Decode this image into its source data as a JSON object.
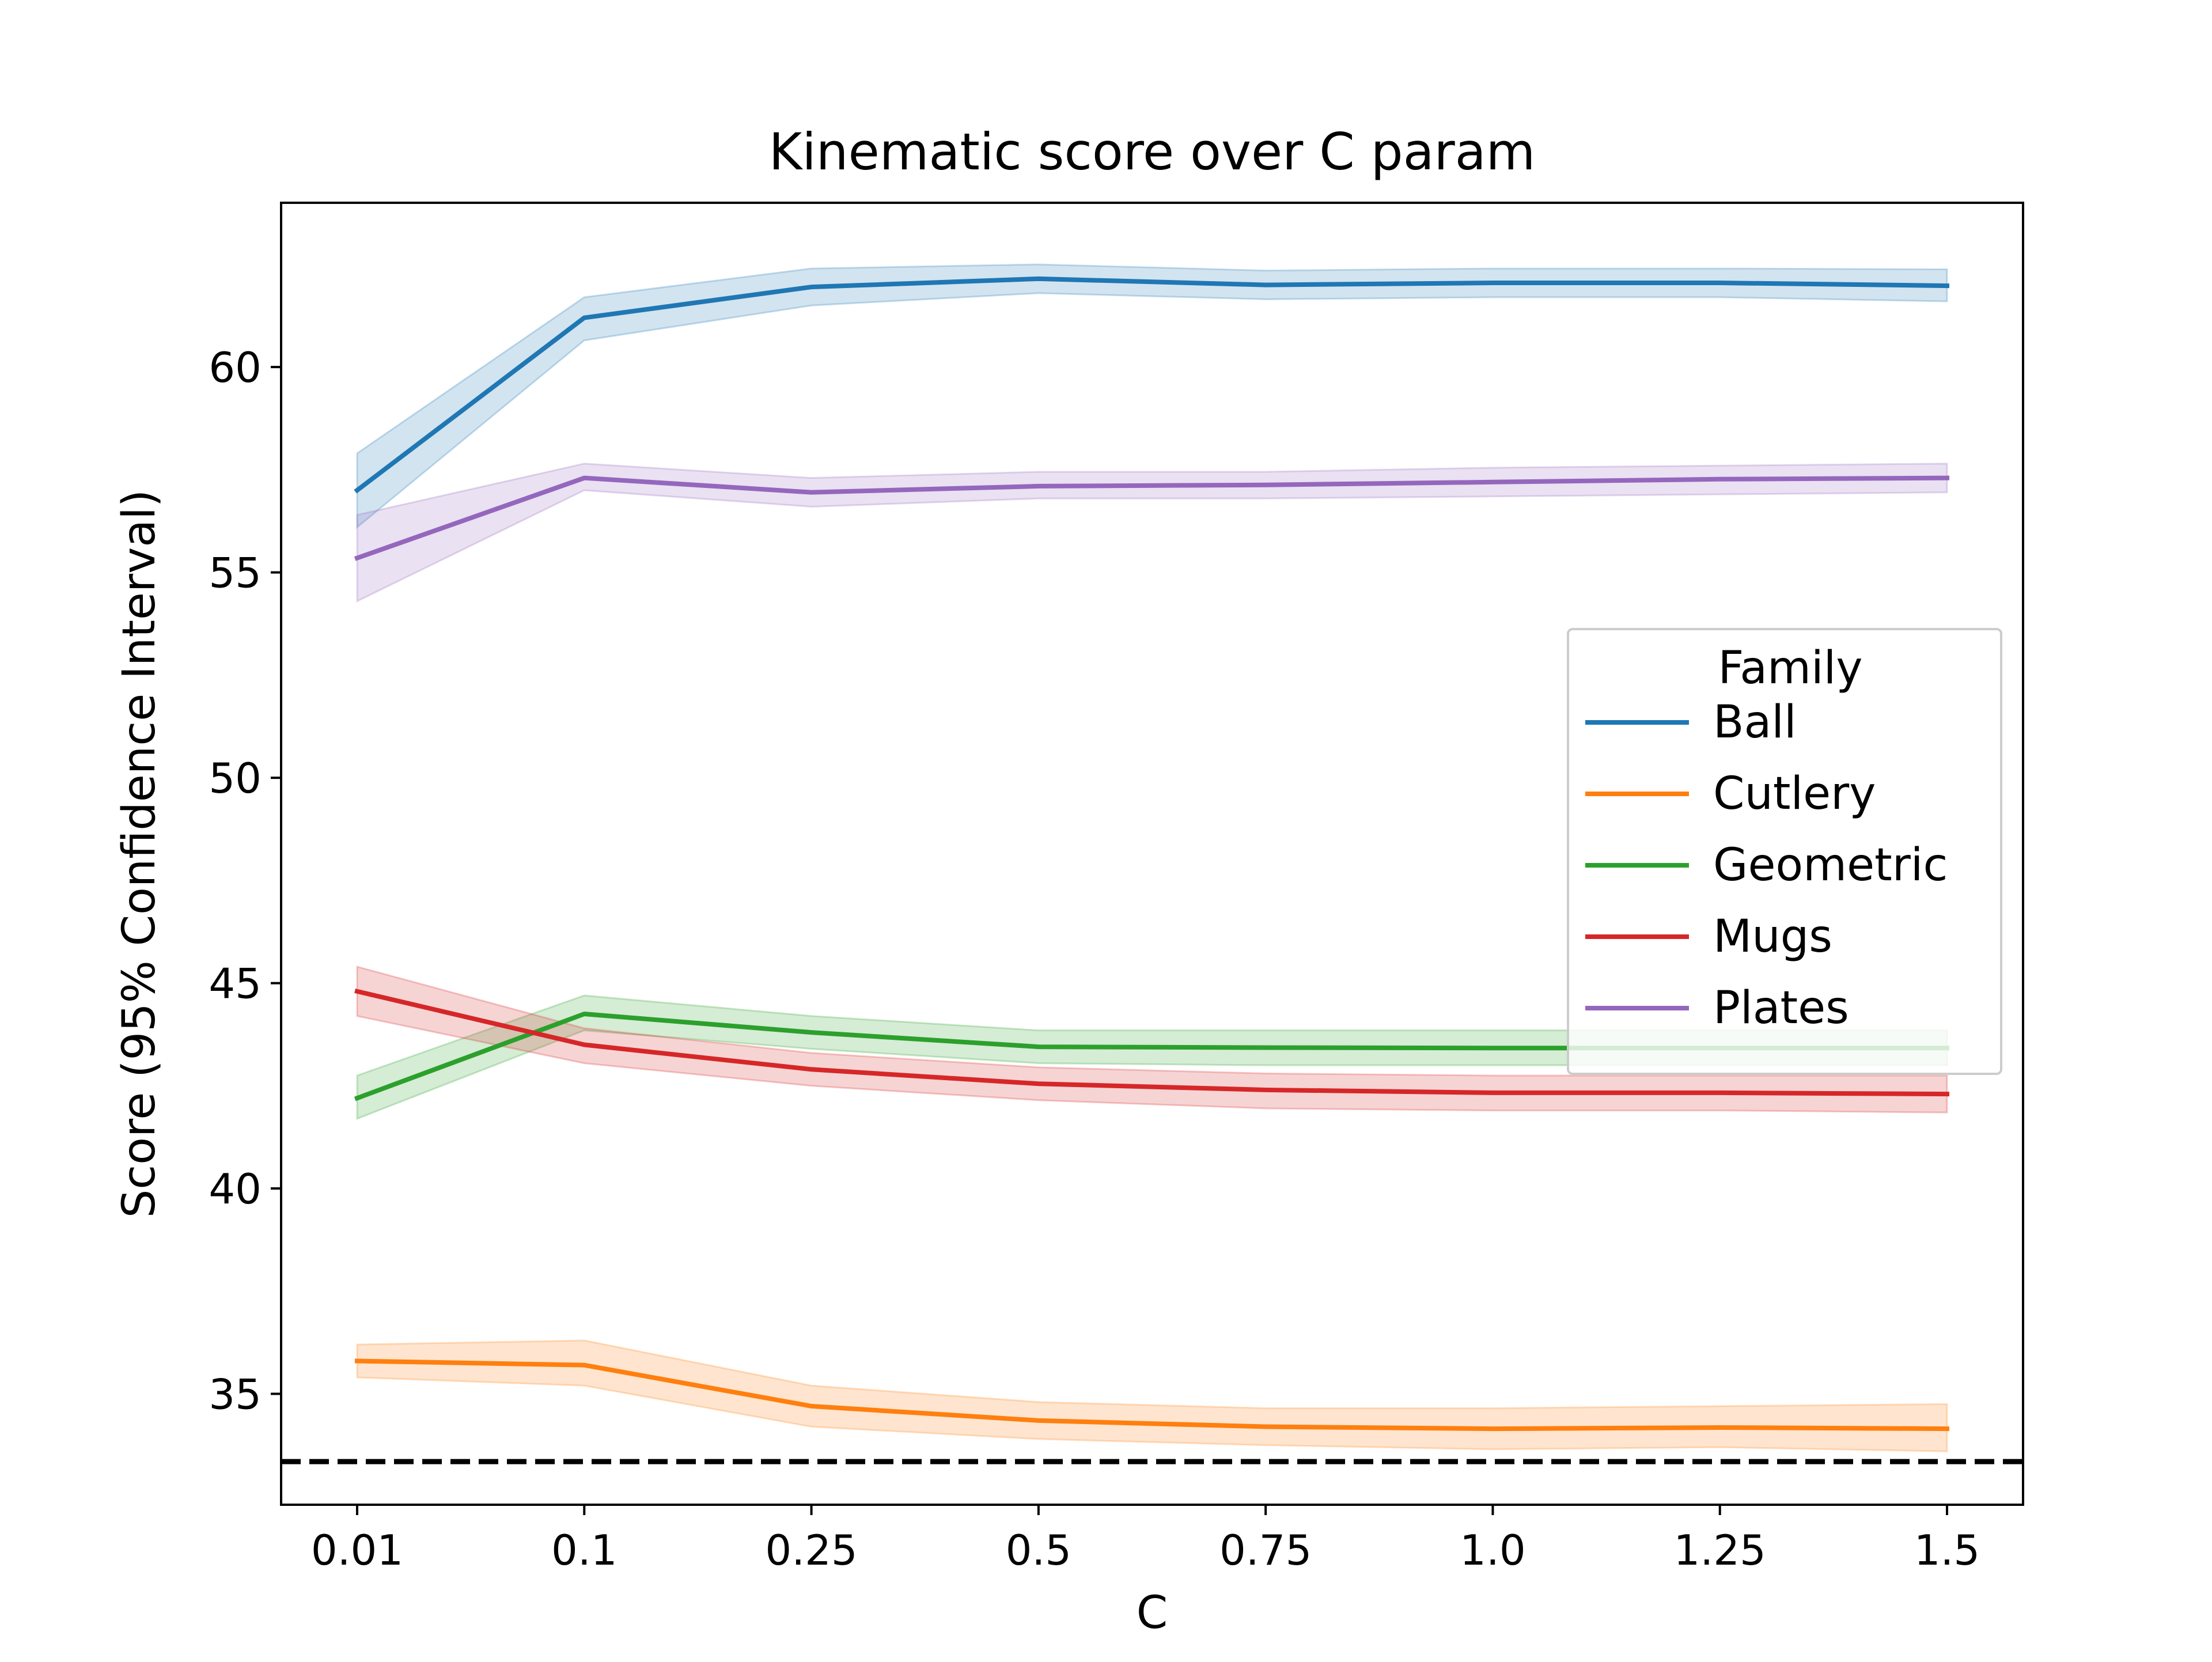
{
  "chart_data": {
    "type": "line",
    "title": "Kinematic score over C param",
    "xlabel": "C",
    "ylabel": "Score (95% Confidence Interval)",
    "categories": [
      "0.01",
      "0.1",
      "0.25",
      "0.5",
      "0.75",
      "1.0",
      "1.25",
      "1.5"
    ],
    "ylim": [
      32.3,
      64.0
    ],
    "yticks": [
      35,
      40,
      45,
      50,
      55,
      60
    ],
    "grid": false,
    "legend": {
      "title": "Family",
      "placement": "center-right"
    },
    "series": [
      {
        "name": "Ball",
        "color": "#1f77b4",
        "values": [
          57.0,
          61.2,
          61.95,
          62.15,
          62.0,
          62.05,
          62.05,
          61.98
        ],
        "lower": [
          56.1,
          60.65,
          61.5,
          61.8,
          61.65,
          61.7,
          61.7,
          61.6
        ],
        "upper": [
          57.9,
          61.7,
          62.4,
          62.5,
          62.35,
          62.4,
          62.4,
          62.38
        ]
      },
      {
        "name": "Cutlery",
        "color": "#ff7f0e",
        "values": [
          35.8,
          35.7,
          34.7,
          34.35,
          34.2,
          34.15,
          34.18,
          34.15
        ],
        "lower": [
          35.4,
          35.2,
          34.2,
          33.9,
          33.75,
          33.65,
          33.7,
          33.6
        ],
        "upper": [
          36.2,
          36.3,
          35.2,
          34.8,
          34.65,
          34.65,
          34.7,
          34.75
        ]
      },
      {
        "name": "Geometric",
        "color": "#2ca02c",
        "values": [
          42.2,
          44.25,
          43.8,
          43.45,
          43.43,
          43.42,
          43.42,
          43.42
        ],
        "lower": [
          41.7,
          43.85,
          43.4,
          43.05,
          43.0,
          43.0,
          43.0,
          43.0
        ],
        "upper": [
          42.75,
          44.7,
          44.2,
          43.85,
          43.85,
          43.85,
          43.85,
          43.85
        ]
      },
      {
        "name": "Mugs",
        "color": "#d62728",
        "values": [
          44.8,
          43.5,
          42.9,
          42.55,
          42.4,
          42.33,
          42.33,
          42.3
        ],
        "lower": [
          44.2,
          43.05,
          42.5,
          42.15,
          41.95,
          41.9,
          41.9,
          41.85
        ],
        "upper": [
          45.4,
          43.9,
          43.3,
          42.95,
          42.8,
          42.75,
          42.75,
          42.75
        ]
      },
      {
        "name": "Plates",
        "color": "#9467bd",
        "values": [
          55.35,
          57.3,
          56.95,
          57.1,
          57.13,
          57.2,
          57.27,
          57.3
        ],
        "lower": [
          54.3,
          57.0,
          56.6,
          56.8,
          56.8,
          56.85,
          56.9,
          56.95
        ],
        "upper": [
          56.4,
          57.65,
          57.3,
          57.45,
          57.45,
          57.55,
          57.6,
          57.65
        ]
      }
    ],
    "reference_line": {
      "y": 33.35,
      "style": "dashed",
      "color": "#000000"
    }
  }
}
